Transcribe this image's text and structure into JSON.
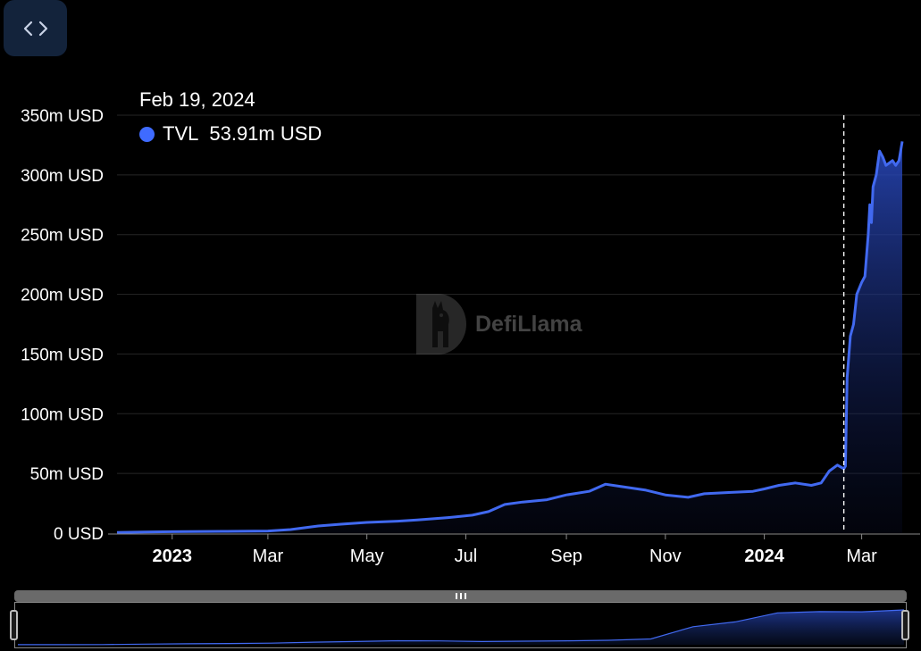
{
  "embed_button": {
    "icon": "code-brackets-icon"
  },
  "tooltip": {
    "date": "Feb 19, 2024",
    "series": "TVL",
    "value": "53.91m USD",
    "color": "#3f6bff"
  },
  "watermark": {
    "text": "DefiLlama",
    "icon": "llama-logo-icon"
  },
  "colors": {
    "line": "#4169f0",
    "area_top": "#2a4bc4",
    "grid": "#262626",
    "axis_text": "#ffffff",
    "crosshair": "#ffffff"
  },
  "chart_data": {
    "type": "area",
    "title": "",
    "xlabel": "",
    "ylabel": "",
    "ylim": [
      0,
      350
    ],
    "y_unit": "m USD",
    "y_ticks": [
      {
        "value": 0,
        "label": "0 USD"
      },
      {
        "value": 50,
        "label": "50m USD"
      },
      {
        "value": 100,
        "label": "100m USD"
      },
      {
        "value": 150,
        "label": "150m USD"
      },
      {
        "value": 200,
        "label": "200m USD"
      },
      {
        "value": 250,
        "label": "250m USD"
      },
      {
        "value": 300,
        "label": "300m USD"
      },
      {
        "value": 350,
        "label": "350m USD"
      }
    ],
    "x_range": [
      "2022-11-28",
      "2024-03-26"
    ],
    "x_ticks": [
      {
        "date": "2023-01-01",
        "label": "2023",
        "bold": true
      },
      {
        "date": "2023-03-01",
        "label": "Mar",
        "bold": false
      },
      {
        "date": "2023-05-01",
        "label": "May",
        "bold": false
      },
      {
        "date": "2023-07-01",
        "label": "Jul",
        "bold": false
      },
      {
        "date": "2023-09-01",
        "label": "Sep",
        "bold": false
      },
      {
        "date": "2023-11-01",
        "label": "Nov",
        "bold": false
      },
      {
        "date": "2024-01-01",
        "label": "2024",
        "bold": true
      },
      {
        "date": "2024-03-01",
        "label": "Mar",
        "bold": false
      }
    ],
    "grid": true,
    "crosshair_date": "2024-02-19",
    "series": [
      {
        "name": "TVL",
        "x": [
          "2022-11-28",
          "2022-12-15",
          "2023-01-01",
          "2023-02-01",
          "2023-03-01",
          "2023-03-15",
          "2023-04-01",
          "2023-04-15",
          "2023-05-01",
          "2023-05-20",
          "2023-06-01",
          "2023-06-20",
          "2023-07-05",
          "2023-07-15",
          "2023-07-25",
          "2023-08-05",
          "2023-08-20",
          "2023-09-01",
          "2023-09-15",
          "2023-09-25",
          "2023-10-05",
          "2023-10-20",
          "2023-11-01",
          "2023-11-15",
          "2023-11-25",
          "2023-12-10",
          "2023-12-25",
          "2024-01-01",
          "2024-01-10",
          "2024-01-20",
          "2024-01-30",
          "2024-02-05",
          "2024-02-10",
          "2024-02-15",
          "2024-02-19",
          "2024-02-20",
          "2024-02-21",
          "2024-02-23",
          "2024-02-25",
          "2024-02-27",
          "2024-03-01",
          "2024-03-03",
          "2024-03-05",
          "2024-03-06",
          "2024-03-07",
          "2024-03-08",
          "2024-03-10",
          "2024-03-12",
          "2024-03-14",
          "2024-03-16",
          "2024-03-18",
          "2024-03-20",
          "2024-03-22",
          "2024-03-24",
          "2024-03-26"
        ],
        "values": [
          0.5,
          1,
          1.2,
          1.5,
          1.8,
          3,
          6,
          7.5,
          9,
          10,
          11,
          13,
          15,
          18,
          24,
          26,
          28,
          32,
          35,
          41,
          39,
          36,
          32,
          30,
          33,
          34,
          35,
          37,
          40,
          42,
          40,
          42,
          52,
          57,
          53.91,
          56,
          130,
          165,
          175,
          200,
          210,
          215,
          250,
          275,
          260,
          290,
          300,
          320,
          315,
          308,
          310,
          312,
          308,
          312,
          328
        ]
      }
    ]
  },
  "overview": {
    "values": [
      1,
      1,
      2,
      6,
      9,
      12,
      15,
      24,
      30,
      38,
      36,
      30,
      34,
      37,
      42,
      55,
      170,
      215,
      300,
      312,
      310,
      328
    ]
  }
}
